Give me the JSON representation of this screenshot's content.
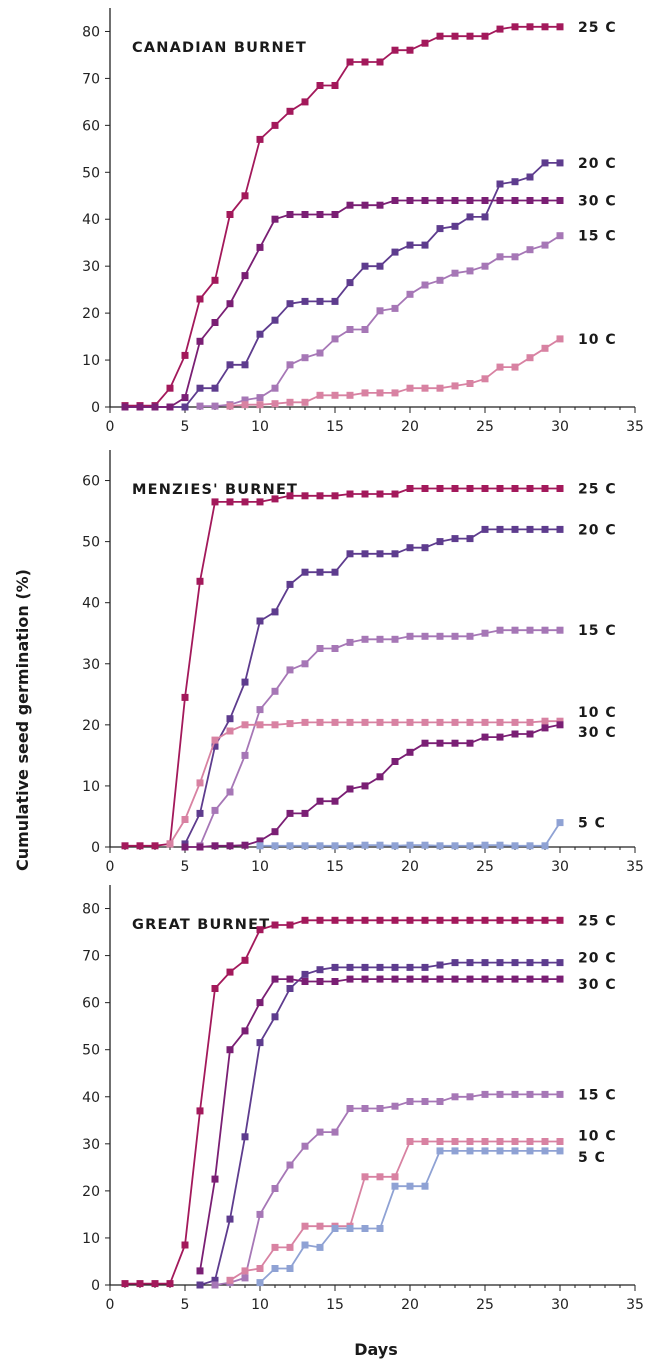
{
  "ylabel": "Cumulative seed germination (%)",
  "xlabel": "Days",
  "colors": {
    "25 C": "#a3195b",
    "20 C": "#5e3c8e",
    "30 C": "#7a1f74",
    "15 C": "#a677b6",
    "10 C": "#d882a2",
    "5 C": "#8fa2d4"
  },
  "chart_data": [
    {
      "type": "line",
      "title": "CANADIAN BURNET",
      "xlim": [
        0,
        35
      ],
      "ylim": [
        0,
        85
      ],
      "xticks": [
        0,
        5,
        10,
        15,
        20,
        25,
        30,
        35
      ],
      "yticks": [
        0,
        10,
        20,
        30,
        40,
        50,
        60,
        70,
        80
      ],
      "series": [
        {
          "name": "25 C",
          "x": [
            1,
            2,
            3,
            4,
            5,
            6,
            7,
            8,
            9,
            10,
            11,
            12,
            13,
            14,
            15,
            16,
            17,
            18,
            19,
            20,
            21,
            22,
            23,
            24,
            25,
            26,
            27,
            28,
            29,
            30
          ],
          "values": [
            0.3,
            0.3,
            0.3,
            4,
            11,
            23,
            27,
            41,
            45,
            57,
            60,
            63,
            65,
            68.5,
            68.5,
            73.5,
            73.5,
            73.5,
            76,
            76,
            77.5,
            79,
            79,
            79,
            79,
            80.5,
            81,
            81,
            81,
            81
          ]
        },
        {
          "name": "20 C",
          "x": [
            1,
            2,
            3,
            4,
            5,
            6,
            7,
            8,
            9,
            10,
            11,
            12,
            13,
            14,
            15,
            16,
            17,
            18,
            19,
            20,
            21,
            22,
            23,
            24,
            25,
            26,
            27,
            28,
            29,
            30
          ],
          "values": [
            0,
            0,
            0,
            0,
            0,
            4,
            4,
            9,
            9,
            15.5,
            18.5,
            22,
            22.5,
            22.5,
            22.5,
            26.5,
            30,
            30,
            33,
            34.5,
            34.5,
            38,
            38.5,
            40.5,
            40.5,
            47.5,
            48,
            49,
            52,
            52
          ]
        },
        {
          "name": "30 C",
          "x": [
            1,
            2,
            3,
            4,
            5,
            6,
            7,
            8,
            9,
            10,
            11,
            12,
            13,
            14,
            15,
            16,
            17,
            18,
            19,
            20,
            21,
            22,
            23,
            24,
            25,
            26,
            27,
            28,
            29,
            30
          ],
          "values": [
            0,
            0,
            0,
            0,
            2,
            14,
            18,
            22,
            28,
            34,
            40,
            41,
            41,
            41,
            41,
            43,
            43,
            43,
            44,
            44,
            44,
            44,
            44,
            44,
            44,
            44,
            44,
            44,
            44,
            44
          ]
        },
        {
          "name": "15 C",
          "x": [
            6,
            7,
            8,
            9,
            10,
            11,
            12,
            13,
            14,
            15,
            16,
            17,
            18,
            19,
            20,
            21,
            22,
            23,
            24,
            25,
            26,
            27,
            28,
            29,
            30
          ],
          "values": [
            0.2,
            0.2,
            0.5,
            1.5,
            2,
            4,
            9,
            10.5,
            11.5,
            14.5,
            16.5,
            16.5,
            20.5,
            21,
            24,
            26,
            27,
            28.5,
            29,
            30,
            32,
            32,
            33.5,
            34.5,
            36.5
          ]
        },
        {
          "name": "10 C",
          "x": [
            8,
            9,
            10,
            11,
            12,
            13,
            14,
            15,
            16,
            17,
            18,
            19,
            20,
            21,
            22,
            23,
            24,
            25,
            26,
            27,
            28,
            29,
            30
          ],
          "values": [
            0.2,
            0.5,
            0.5,
            0.7,
            1,
            1,
            2.5,
            2.5,
            2.5,
            3,
            3,
            3,
            4,
            4,
            4,
            4.5,
            5,
            6,
            8.5,
            8.5,
            10.5,
            12.5,
            14.5
          ]
        }
      ]
    },
    {
      "type": "line",
      "title": "MENZIES' BURNET",
      "xlim": [
        0,
        35
      ],
      "ylim": [
        0,
        65
      ],
      "xticks": [
        0,
        5,
        10,
        15,
        20,
        25,
        30,
        35
      ],
      "yticks": [
        0,
        10,
        20,
        30,
        40,
        50,
        60
      ],
      "series": [
        {
          "name": "25 C",
          "x": [
            1,
            2,
            3,
            4,
            5,
            6,
            7,
            8,
            9,
            10,
            11,
            12,
            13,
            14,
            15,
            16,
            17,
            18,
            19,
            20,
            21,
            22,
            23,
            24,
            25,
            26,
            27,
            28,
            29,
            30
          ],
          "values": [
            0.2,
            0.2,
            0.2,
            0.5,
            24.5,
            43.5,
            56.5,
            56.5,
            56.5,
            56.5,
            57,
            57.5,
            57.5,
            57.5,
            57.5,
            57.8,
            57.8,
            57.8,
            57.8,
            58.7,
            58.7,
            58.7,
            58.7,
            58.7,
            58.7,
            58.7,
            58.7,
            58.7,
            58.7,
            58.7
          ]
        },
        {
          "name": "20 C",
          "x": [
            5,
            6,
            7,
            8,
            9,
            10,
            11,
            12,
            13,
            14,
            15,
            16,
            17,
            18,
            19,
            20,
            21,
            22,
            23,
            24,
            25,
            26,
            27,
            28,
            29,
            30
          ],
          "values": [
            0.5,
            5.5,
            16.5,
            21,
            27,
            37,
            38.5,
            43,
            45,
            45,
            45,
            48,
            48,
            48,
            48,
            49,
            49,
            50,
            50.5,
            50.5,
            52,
            52,
            52,
            52,
            52,
            52
          ]
        },
        {
          "name": "15 C",
          "x": [
            6,
            7,
            8,
            9,
            10,
            11,
            12,
            13,
            14,
            15,
            16,
            17,
            18,
            19,
            20,
            21,
            22,
            23,
            24,
            25,
            26,
            27,
            28,
            29,
            30
          ],
          "values": [
            0.2,
            6,
            9,
            15,
            22.5,
            25.5,
            29,
            30,
            32.5,
            32.5,
            33.5,
            34,
            34,
            34,
            34.5,
            34.5,
            34.5,
            34.5,
            34.5,
            35,
            35.5,
            35.5,
            35.5,
            35.5,
            35.5
          ]
        },
        {
          "name": "10 C",
          "x": [
            4,
            5,
            6,
            7,
            8,
            9,
            10,
            11,
            12,
            13,
            14,
            15,
            16,
            17,
            18,
            19,
            20,
            21,
            22,
            23,
            24,
            25,
            26,
            27,
            28,
            29,
            30
          ],
          "values": [
            0.5,
            4.5,
            10.5,
            17.5,
            19,
            20,
            20,
            20,
            20.2,
            20.4,
            20.4,
            20.4,
            20.4,
            20.4,
            20.4,
            20.4,
            20.4,
            20.4,
            20.4,
            20.4,
            20.4,
            20.4,
            20.4,
            20.4,
            20.4,
            20.6,
            20.6
          ]
        },
        {
          "name": "30 C",
          "x": [
            5,
            6,
            7,
            8,
            9,
            10,
            11,
            12,
            13,
            14,
            15,
            16,
            17,
            18,
            19,
            20,
            21,
            22,
            23,
            24,
            25,
            26,
            27,
            28,
            29,
            30
          ],
          "values": [
            0,
            0,
            0.2,
            0.2,
            0.3,
            1,
            2.5,
            5.5,
            5.5,
            7.5,
            7.5,
            9.5,
            10,
            11.5,
            14,
            15.5,
            17,
            17,
            17,
            17,
            18,
            18,
            18.5,
            18.5,
            19.5,
            20
          ]
        },
        {
          "name": "5 C",
          "x": [
            10,
            11,
            12,
            13,
            14,
            15,
            16,
            17,
            18,
            19,
            20,
            21,
            22,
            23,
            24,
            25,
            26,
            27,
            28,
            29,
            30
          ],
          "values": [
            0.2,
            0.2,
            0.2,
            0.2,
            0.2,
            0.2,
            0.2,
            0.3,
            0.3,
            0.2,
            0.3,
            0.3,
            0.2,
            0.2,
            0.2,
            0.3,
            0.3,
            0.2,
            0.2,
            0.2,
            4
          ]
        }
      ]
    },
    {
      "type": "line",
      "title": "GREAT BURNET",
      "xlim": [
        0,
        35
      ],
      "ylim": [
        0,
        85
      ],
      "xticks": [
        0,
        5,
        10,
        15,
        20,
        25,
        30,
        35
      ],
      "yticks": [
        0,
        10,
        20,
        30,
        40,
        50,
        60,
        70,
        80
      ],
      "series": [
        {
          "name": "25 C",
          "x": [
            1,
            2,
            3,
            4,
            5,
            6,
            7,
            8,
            9,
            10,
            11,
            12,
            13,
            14,
            15,
            16,
            17,
            18,
            19,
            20,
            21,
            22,
            23,
            24,
            25,
            26,
            27,
            28,
            29,
            30
          ],
          "values": [
            0.3,
            0.3,
            0.3,
            0.3,
            8.5,
            37,
            63,
            66.5,
            69,
            75.5,
            76.5,
            76.5,
            77.5,
            77.5,
            77.5,
            77.5,
            77.5,
            77.5,
            77.5,
            77.5,
            77.5,
            77.5,
            77.5,
            77.5,
            77.5,
            77.5,
            77.5,
            77.5,
            77.5,
            77.5
          ]
        },
        {
          "name": "20 C",
          "x": [
            6,
            7,
            8,
            9,
            10,
            11,
            12,
            13,
            14,
            15,
            16,
            17,
            18,
            19,
            20,
            21,
            22,
            23,
            24,
            25,
            26,
            27,
            28,
            29,
            30
          ],
          "values": [
            0,
            1,
            14,
            31.5,
            51.5,
            57,
            63,
            66,
            67,
            67.5,
            67.5,
            67.5,
            67.5,
            67.5,
            67.5,
            67.5,
            68,
            68.5,
            68.5,
            68.5,
            68.5,
            68.5,
            68.5,
            68.5,
            68.5
          ]
        },
        {
          "name": "30 C",
          "x": [
            6,
            7,
            8,
            9,
            10,
            11,
            12,
            13,
            14,
            15,
            16,
            17,
            18,
            19,
            20,
            21,
            22,
            23,
            24,
            25,
            26,
            27,
            28,
            29,
            30
          ],
          "values": [
            3,
            22.5,
            50,
            54,
            60,
            65,
            65,
            64.5,
            64.5,
            64.5,
            65,
            65,
            65,
            65,
            65,
            65,
            65,
            65,
            65,
            65,
            65,
            65,
            65,
            65,
            65
          ]
        },
        {
          "name": "15 C",
          "x": [
            7,
            8,
            9,
            10,
            11,
            12,
            13,
            14,
            15,
            16,
            17,
            18,
            19,
            20,
            21,
            22,
            23,
            24,
            25,
            26,
            27,
            28,
            29,
            30
          ],
          "values": [
            0,
            0.5,
            1.5,
            15,
            20.5,
            25.5,
            29.5,
            32.5,
            32.5,
            37.5,
            37.5,
            37.5,
            38,
            39,
            39,
            39,
            40,
            40,
            40.5,
            40.5,
            40.5,
            40.5,
            40.5,
            40.5
          ]
        },
        {
          "name": "10 C",
          "x": [
            8,
            9,
            10,
            11,
            12,
            13,
            14,
            15,
            16,
            17,
            18,
            19,
            20,
            21,
            22,
            23,
            24,
            25,
            26,
            27,
            28,
            29,
            30
          ],
          "values": [
            1,
            3,
            3.5,
            8,
            8,
            12.5,
            12.5,
            12.5,
            12.5,
            23,
            23,
            23,
            30.5,
            30.5,
            30.5,
            30.5,
            30.5,
            30.5,
            30.5,
            30.5,
            30.5,
            30.5,
            30.5
          ]
        },
        {
          "name": "5 C",
          "x": [
            10,
            11,
            12,
            13,
            14,
            15,
            16,
            17,
            18,
            19,
            20,
            21,
            22,
            23,
            24,
            25,
            26,
            27,
            28,
            29,
            30
          ],
          "values": [
            0.5,
            3.5,
            3.5,
            8.5,
            8,
            12,
            12,
            12,
            12,
            21,
            21,
            21,
            28.5,
            28.5,
            28.5,
            28.5,
            28.5,
            28.5,
            28.5,
            28.5,
            28.5
          ]
        }
      ]
    }
  ]
}
